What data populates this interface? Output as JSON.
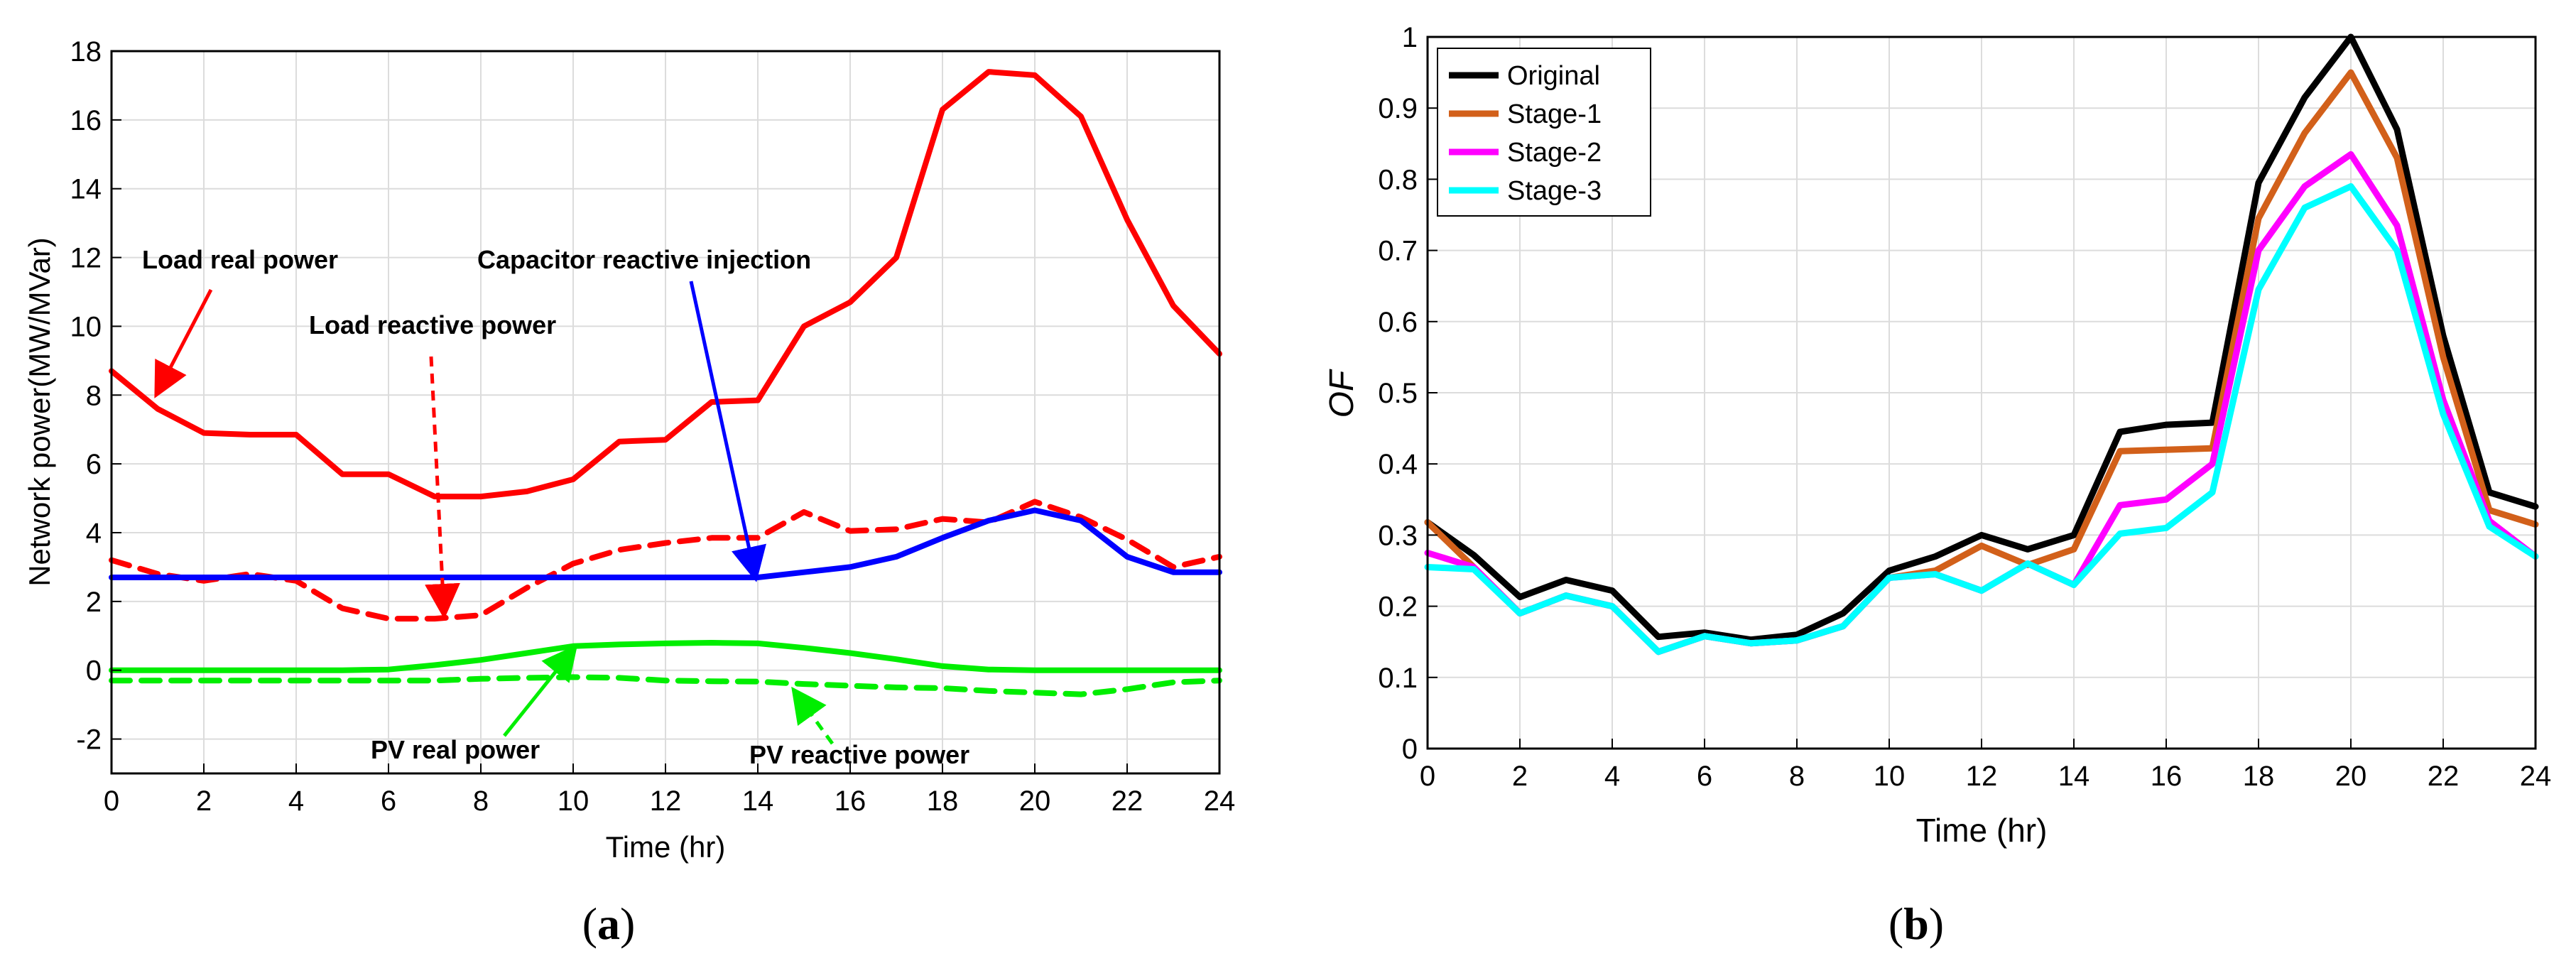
{
  "chart_data": [
    {
      "type": "line",
      "panel_label": "a",
      "xlabel": "Time (hr)",
      "ylabel": "Network power(MW/MVar)",
      "xlim": [
        0,
        24
      ],
      "ylim": [
        -3,
        18
      ],
      "xticks": [
        0,
        2,
        4,
        6,
        8,
        10,
        12,
        14,
        16,
        18,
        20,
        22,
        24
      ],
      "yticks": [
        -2,
        0,
        2,
        4,
        6,
        8,
        10,
        12,
        14,
        16,
        18
      ],
      "grid": true,
      "x": [
        0,
        1,
        2,
        3,
        4,
        5,
        6,
        7,
        8,
        9,
        10,
        11,
        12,
        13,
        14,
        15,
        16,
        17,
        18,
        19,
        20,
        21,
        22,
        23,
        24
      ],
      "series": [
        {
          "name": "Load real power",
          "color": "#ff0000",
          "dash": "solid",
          "values": [
            8.7,
            7.6,
            6.9,
            6.85,
            6.85,
            5.7,
            5.7,
            5.05,
            5.05,
            5.2,
            5.55,
            6.65,
            6.7,
            7.8,
            7.85,
            10.0,
            10.7,
            12.0,
            16.3,
            17.4,
            17.3,
            16.1,
            13.1,
            10.6,
            9.2
          ]
        },
        {
          "name": "Load reactive power",
          "color": "#ff0000",
          "dash": "dashed",
          "values": [
            3.2,
            2.8,
            2.6,
            2.8,
            2.6,
            1.8,
            1.5,
            1.5,
            1.6,
            2.4,
            3.1,
            3.5,
            3.7,
            3.85,
            3.85,
            4.6,
            4.05,
            4.1,
            4.4,
            4.3,
            4.9,
            4.45,
            3.8,
            3.0,
            3.3
          ]
        },
        {
          "name": "Capacitor reactive injection",
          "color": "#0000ff",
          "dash": "solid",
          "values": [
            2.7,
            2.7,
            2.7,
            2.7,
            2.7,
            2.7,
            2.7,
            2.7,
            2.7,
            2.7,
            2.7,
            2.7,
            2.7,
            2.7,
            2.7,
            2.85,
            3.0,
            3.3,
            3.85,
            4.35,
            4.65,
            4.35,
            3.3,
            2.85,
            2.85
          ]
        },
        {
          "name": "PV real power",
          "color": "#00ee00",
          "dash": "solid",
          "values": [
            0,
            0,
            0,
            0,
            0,
            0,
            0.02,
            0.15,
            0.3,
            0.5,
            0.7,
            0.75,
            0.78,
            0.8,
            0.78,
            0.65,
            0.5,
            0.32,
            0.12,
            0.02,
            0,
            0,
            0,
            0,
            0
          ]
        },
        {
          "name": "PV reactive power",
          "color": "#00ee00",
          "dash": "dashed",
          "values": [
            -0.3,
            -0.3,
            -0.3,
            -0.3,
            -0.3,
            -0.3,
            -0.3,
            -0.3,
            -0.25,
            -0.22,
            -0.2,
            -0.22,
            -0.3,
            -0.32,
            -0.33,
            -0.4,
            -0.45,
            -0.5,
            -0.52,
            -0.6,
            -0.65,
            -0.7,
            -0.55,
            -0.35,
            -0.3
          ]
        }
      ],
      "annotations": [
        {
          "text": "Load real power",
          "arrow_to": [
            1,
            7.8
          ]
        },
        {
          "text": "Load reactive power",
          "arrow_to": [
            7.2,
            1.6
          ]
        },
        {
          "text": "Capacitor reactive injection",
          "arrow_to": [
            14,
            2.75
          ]
        },
        {
          "text": "PV real power",
          "arrow_to": [
            10,
            0.75
          ]
        },
        {
          "text": "PV reactive power",
          "arrow_to": [
            14.8,
            -0.5
          ]
        }
      ]
    },
    {
      "type": "line",
      "panel_label": "b",
      "xlabel": "Time (hr)",
      "ylabel": "OF",
      "xlim": [
        0,
        24
      ],
      "ylim": [
        0,
        1
      ],
      "xticks": [
        0,
        2,
        4,
        6,
        8,
        10,
        12,
        14,
        16,
        18,
        20,
        22,
        24
      ],
      "yticks": [
        0,
        0.1,
        0.2,
        0.3,
        0.4,
        0.5,
        0.6,
        0.7,
        0.8,
        0.9,
        1
      ],
      "grid": true,
      "legend": "top-left",
      "x": [
        0,
        1,
        2,
        3,
        4,
        5,
        6,
        7,
        8,
        9,
        10,
        11,
        12,
        13,
        14,
        15,
        16,
        17,
        18,
        19,
        20,
        21,
        22,
        23,
        24
      ],
      "series": [
        {
          "name": "Original",
          "color": "#000000",
          "values": [
            0.318,
            0.272,
            0.213,
            0.237,
            0.222,
            0.157,
            0.163,
            0.153,
            0.16,
            0.19,
            0.25,
            0.27,
            0.3,
            0.28,
            0.3,
            0.445,
            0.455,
            0.458,
            0.795,
            0.915,
            1.0,
            0.87,
            0.58,
            0.36,
            0.34
          ]
        },
        {
          "name": "Stage-1",
          "color": "#d2601a",
          "values": [
            0.318,
            0.255,
            0.19,
            0.215,
            0.2,
            0.136,
            0.158,
            0.148,
            0.152,
            0.172,
            0.24,
            0.25,
            0.285,
            0.258,
            0.28,
            0.418,
            0.42,
            0.422,
            0.745,
            0.865,
            0.95,
            0.83,
            0.55,
            0.335,
            0.315
          ]
        },
        {
          "name": "Stage-2",
          "color": "#ff00ff",
          "values": [
            0.275,
            0.255,
            0.19,
            0.215,
            0.2,
            0.136,
            0.158,
            0.148,
            0.152,
            0.172,
            0.24,
            0.245,
            0.222,
            0.26,
            0.23,
            0.342,
            0.35,
            0.4,
            0.7,
            0.79,
            0.835,
            0.735,
            0.49,
            0.32,
            0.27
          ]
        },
        {
          "name": "Stage-3",
          "color": "#00ffff",
          "values": [
            0.255,
            0.252,
            0.19,
            0.215,
            0.2,
            0.136,
            0.158,
            0.148,
            0.152,
            0.172,
            0.24,
            0.245,
            0.222,
            0.26,
            0.23,
            0.302,
            0.31,
            0.36,
            0.645,
            0.76,
            0.79,
            0.7,
            0.47,
            0.312,
            0.27
          ]
        }
      ]
    }
  ]
}
